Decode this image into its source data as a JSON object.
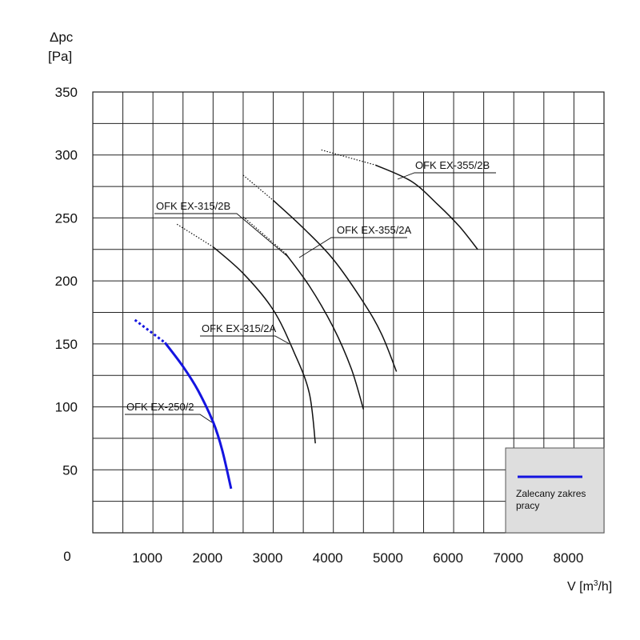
{
  "chart_data": {
    "type": "line",
    "ylabel_line1": "Δpc",
    "ylabel_line2": "[Pa]",
    "xlabel_text": "V [m",
    "xlabel_sup": "3",
    "xlabel_end": "/h]",
    "origin_label": "0",
    "xlim": [
      0,
      8500
    ],
    "ylim": [
      0,
      350
    ],
    "x_ticks": [
      1000,
      2000,
      3000,
      4000,
      5000,
      6000,
      7000,
      8000
    ],
    "y_ticks": [
      50,
      100,
      150,
      200,
      250,
      300,
      350
    ],
    "grid": true,
    "legend_position": "bottom-right",
    "legend_label": "Zalecany zakres pracy",
    "legend_label_line1": "Zalecany zakres",
    "legend_label_line2": "pracy",
    "recommended_color": "#1414e0",
    "curve_color": "#111111",
    "series": [
      {
        "name": "OFK EX-250/2",
        "color": "#1414e0",
        "dotted": [
          [
            700,
            169
          ],
          [
            1200,
            151
          ]
        ],
        "solid": [
          [
            1200,
            151
          ],
          [
            1500,
            132
          ],
          [
            1750,
            113
          ],
          [
            2000,
            88
          ],
          [
            2150,
            66
          ],
          [
            2300,
            35
          ]
        ]
      },
      {
        "name": "OFK EX-315/2A",
        "color": "#111111",
        "dotted": [
          [
            1400,
            245
          ],
          [
            2000,
            227
          ]
        ],
        "solid": [
          [
            2000,
            227
          ],
          [
            2500,
            206
          ],
          [
            3000,
            177
          ],
          [
            3350,
            143
          ],
          [
            3600,
            111
          ],
          [
            3700,
            71
          ]
        ]
      },
      {
        "name": "OFK EX-315/2B",
        "color": "#111111",
        "dotted": [
          [
            2500,
            251
          ],
          [
            3200,
            222
          ]
        ],
        "solid": [
          [
            3200,
            222
          ],
          [
            3600,
            196
          ],
          [
            4000,
            163
          ],
          [
            4300,
            130
          ],
          [
            4500,
            98
          ]
        ]
      },
      {
        "name": "OFK EX-355/2A",
        "color": "#111111",
        "dotted": [
          [
            2500,
            284
          ],
          [
            3000,
            264
          ]
        ],
        "solid": [
          [
            3000,
            264
          ],
          [
            3500,
            242
          ],
          [
            4000,
            217
          ],
          [
            4500,
            183
          ],
          [
            4800,
            158
          ],
          [
            5050,
            128
          ]
        ]
      },
      {
        "name": "OFK EX-355/2B",
        "color": "#111111",
        "dotted": [
          [
            3800,
            304
          ],
          [
            4700,
            292
          ]
        ],
        "solid": [
          [
            4700,
            292
          ],
          [
            5300,
            279
          ],
          [
            5750,
            260
          ],
          [
            6100,
            243
          ],
          [
            6400,
            225
          ]
        ]
      }
    ]
  }
}
